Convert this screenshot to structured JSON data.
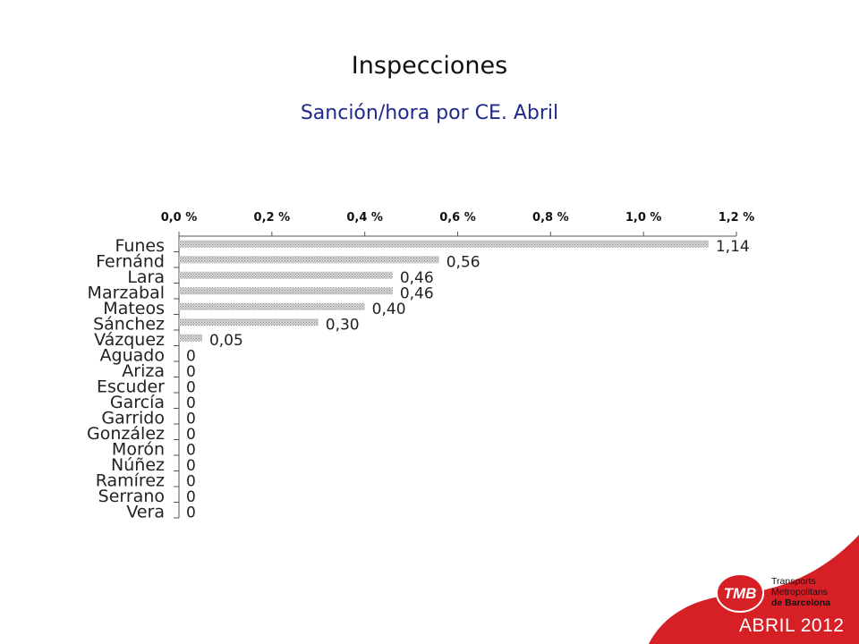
{
  "slide": {
    "title": "Inspecciones",
    "subtitle": "Sanción/hora por CE. Abril",
    "footer": "ABRIL 2012",
    "accent_color": "#d71f26",
    "subtitle_color": "#1f2a8c"
  },
  "logo": {
    "mark": "TMB",
    "line1": "Transports",
    "line2": "Metropolitans",
    "line3": "de Barcelona"
  },
  "chart_data": {
    "type": "bar",
    "orientation": "horizontal",
    "categories": [
      "Funes",
      "Fernánd",
      "Lara",
      "Marzabal",
      "Mateos",
      "Sánchez",
      "Vázquez",
      "Aguado",
      "Ariza",
      "Escuder",
      "García",
      "Garrido",
      "González",
      "Morón",
      "Núñez",
      "Ramírez",
      "Serrano",
      "Vera"
    ],
    "values": [
      1.14,
      0.56,
      0.46,
      0.46,
      0.4,
      0.3,
      0.05,
      0,
      0,
      0,
      0,
      0,
      0,
      0,
      0,
      0,
      0,
      0
    ],
    "value_labels": [
      "1,14",
      "0,56",
      "0,46",
      "0,46",
      "0,40",
      "0,30",
      "0,05",
      "0",
      "0",
      "0",
      "0",
      "0",
      "0",
      "0",
      "0",
      "0",
      "0",
      "0"
    ],
    "xticks": [
      "0,0 %",
      "0,2 %",
      "0,4 %",
      "0,6 %",
      "0,8 %",
      "1,0 %",
      "1,2 %"
    ],
    "xlim": [
      0,
      1.2
    ],
    "xaxis_position": "top",
    "grid": false,
    "bar_color": "#c8c8c8"
  }
}
